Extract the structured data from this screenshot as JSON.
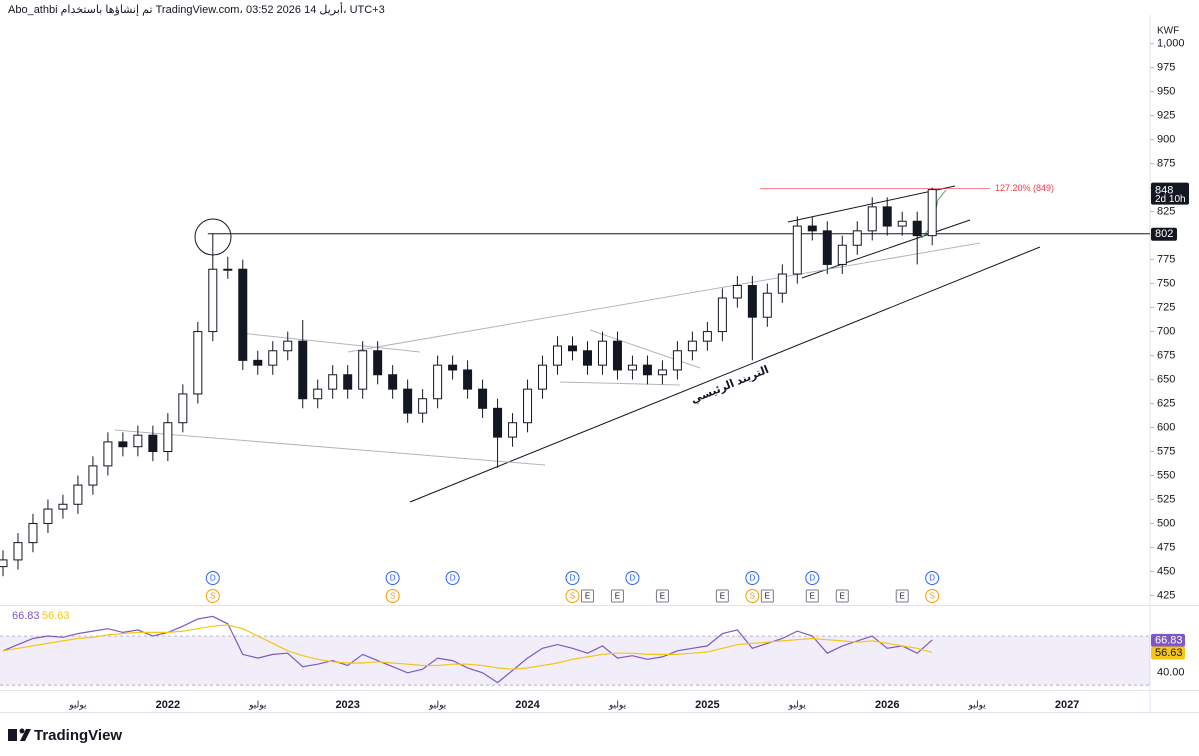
{
  "chart_data": {
    "type": "candlestick",
    "header": "Abo_athbi تم إنشاؤها باستخدام TradingView.com، 03:52 2026 أبريل 14، UTC+3",
    "brand": "TradingView",
    "currency": "KWF",
    "x": [
      "2021-02",
      "2021-03",
      "2021-04",
      "2021-05",
      "2021-06",
      "2021-07",
      "2021-08",
      "2021-09",
      "2021-10",
      "2021-11",
      "2021-12",
      "2022-01",
      "2022-02",
      "2022-03",
      "2022-04",
      "2022-05",
      "2022-06",
      "2022-07",
      "2022-08",
      "2022-09",
      "2022-10",
      "2022-11",
      "2022-12",
      "2023-01",
      "2023-02",
      "2023-03",
      "2023-04",
      "2023-05",
      "2023-06",
      "2023-07",
      "2023-08",
      "2023-09",
      "2023-10",
      "2023-11",
      "2023-12",
      "2024-01",
      "2024-02",
      "2024-03",
      "2024-04",
      "2024-05",
      "2024-06",
      "2024-07",
      "2024-08",
      "2024-09",
      "2024-10",
      "2024-11",
      "2024-12",
      "2025-01",
      "2025-02",
      "2025-03",
      "2025-04",
      "2025-05",
      "2025-06",
      "2025-07",
      "2025-08",
      "2025-09",
      "2025-10",
      "2025-11",
      "2025-12",
      "2026-01",
      "2026-02",
      "2026-03",
      "2026-04"
    ],
    "open": [
      455,
      462,
      480,
      500,
      515,
      520,
      540,
      560,
      585,
      580,
      592,
      575,
      605,
      635,
      700,
      765,
      765,
      670,
      665,
      680,
      690,
      630,
      640,
      655,
      640,
      680,
      655,
      640,
      615,
      630,
      665,
      660,
      640,
      620,
      590,
      605,
      640,
      665,
      685,
      680,
      665,
      690,
      660,
      665,
      655,
      660,
      680,
      690,
      700,
      735,
      748,
      715,
      740,
      760,
      810,
      805,
      770,
      790,
      805,
      830,
      810,
      815,
      800
    ],
    "high": [
      472,
      490,
      510,
      525,
      530,
      550,
      570,
      595,
      595,
      602,
      602,
      615,
      645,
      710,
      802,
      778,
      775,
      680,
      690,
      700,
      712,
      650,
      665,
      665,
      690,
      690,
      665,
      650,
      640,
      675,
      675,
      670,
      650,
      630,
      615,
      650,
      675,
      695,
      695,
      690,
      700,
      700,
      675,
      675,
      670,
      690,
      700,
      710,
      745,
      758,
      758,
      750,
      770,
      820,
      820,
      815,
      800,
      815,
      840,
      840,
      825,
      825,
      850
    ],
    "low": [
      445,
      452,
      470,
      490,
      505,
      510,
      530,
      550,
      570,
      570,
      565,
      565,
      595,
      625,
      690,
      755,
      660,
      655,
      655,
      670,
      620,
      620,
      630,
      630,
      630,
      645,
      630,
      605,
      605,
      620,
      650,
      630,
      610,
      558,
      580,
      595,
      630,
      655,
      670,
      655,
      655,
      650,
      650,
      645,
      645,
      650,
      670,
      680,
      690,
      725,
      670,
      705,
      730,
      750,
      795,
      760,
      760,
      780,
      795,
      800,
      800,
      770,
      790
    ],
    "close": [
      462,
      480,
      500,
      515,
      520,
      540,
      560,
      585,
      580,
      592,
      575,
      605,
      635,
      700,
      765,
      765,
      670,
      665,
      680,
      690,
      630,
      640,
      655,
      640,
      680,
      655,
      640,
      615,
      630,
      665,
      660,
      640,
      620,
      590,
      605,
      640,
      665,
      685,
      680,
      665,
      690,
      660,
      665,
      655,
      660,
      680,
      690,
      700,
      735,
      748,
      715,
      740,
      760,
      810,
      805,
      770,
      790,
      805,
      830,
      810,
      815,
      800,
      848
    ],
    "up_color": "#ffffff",
    "down_color": "#131722",
    "xlim": [
      "2021-01",
      "2027-07"
    ],
    "xticks": [
      {
        "value": "2021-07",
        "label": "يوليو"
      },
      {
        "value": "2022-01",
        "label": "2022"
      },
      {
        "value": "2022-07",
        "label": "يوليو"
      },
      {
        "value": "2023-01",
        "label": "2023"
      },
      {
        "value": "2023-07",
        "label": "يوليو"
      },
      {
        "value": "2024-01",
        "label": "2024"
      },
      {
        "value": "2024-07",
        "label": "يوليو"
      },
      {
        "value": "2025-01",
        "label": "2025"
      },
      {
        "value": "2025-07",
        "label": "يوليو"
      },
      {
        "value": "2026-01",
        "label": "2026"
      },
      {
        "value": "2026-07",
        "label": "يوليو"
      },
      {
        "value": "2027-01",
        "label": "2027"
      }
    ],
    "ylim": [
      415,
      1030
    ],
    "yticks": [
      425,
      450,
      475,
      500,
      525,
      550,
      575,
      600,
      625,
      650,
      675,
      700,
      725,
      750,
      775,
      800,
      825,
      850,
      875,
      900,
      925,
      950,
      975,
      {
        "value": 1000,
        "label": "1,000"
      }
    ],
    "grid": false,
    "last_price": 848,
    "countdown": "2d 10h",
    "level": 802,
    "target": {
      "value": 849,
      "label": "127.20% (849)"
    },
    "target_color": "#f23645",
    "annotation": "التريند الرئيسي",
    "events": [
      {
        "label": "D",
        "x": "2022-04"
      },
      {
        "label": "D",
        "x": "2023-04"
      },
      {
        "label": "D",
        "x": "2023-08"
      },
      {
        "label": "D",
        "x": "2024-04"
      },
      {
        "label": "D",
        "x": "2024-08"
      },
      {
        "label": "D",
        "x": "2025-04"
      },
      {
        "label": "D",
        "x": "2025-08"
      },
      {
        "label": "D",
        "x": "2026-04"
      },
      {
        "label": "S",
        "x": "2022-04"
      },
      {
        "label": "S",
        "x": "2023-04"
      },
      {
        "label": "S",
        "x": "2024-04"
      },
      {
        "label": "S",
        "x": "2025-04"
      },
      {
        "label": "S",
        "x": "2026-04"
      },
      {
        "label": "E",
        "x": "2024-05"
      },
      {
        "label": "E",
        "x": "2024-07"
      },
      {
        "label": "E",
        "x": "2024-10"
      },
      {
        "label": "E",
        "x": "2025-02"
      },
      {
        "label": "E",
        "x": "2025-05"
      },
      {
        "label": "E",
        "x": "2025-08"
      },
      {
        "label": "E",
        "x": "2025-10"
      },
      {
        "label": "E",
        "x": "2026-02"
      }
    ],
    "rsi": {
      "ylim": [
        26,
        94.5
      ],
      "yticks": [
        {
          "value": 40,
          "label": "40.00"
        }
      ],
      "bands": [
        30,
        70
      ],
      "band_color": "#7e57c2",
      "series": [
        {
          "color": "#7e57c2",
          "values": [
            58,
            63,
            68,
            70,
            69,
            72,
            74,
            76,
            73,
            75,
            70,
            73,
            78,
            84,
            86,
            80,
            55,
            52,
            55,
            56,
            45,
            47,
            50,
            46,
            55,
            50,
            45,
            40,
            43,
            52,
            50,
            44,
            40,
            32,
            42,
            52,
            60,
            63,
            60,
            56,
            62,
            52,
            54,
            51,
            53,
            58,
            60,
            62,
            72,
            75,
            60,
            64,
            68,
            74,
            70,
            56,
            62,
            66,
            70,
            60,
            62,
            56,
            66.83
          ]
        },
        {
          "color": "#f5c518",
          "values": [
            58,
            60,
            62,
            64,
            66,
            68,
            69,
            71,
            72,
            73,
            73,
            73,
            74,
            76,
            78,
            79,
            76,
            70,
            64,
            58,
            54,
            51,
            49,
            48,
            48,
            49,
            48,
            47,
            46,
            46,
            47,
            47,
            46,
            44,
            43,
            44,
            46,
            48,
            51,
            53,
            55,
            56,
            56,
            55,
            55,
            55,
            56,
            57,
            60,
            63,
            64,
            65,
            66,
            67,
            68,
            67,
            66,
            65,
            66,
            64,
            62,
            60,
            56.63
          ]
        }
      ]
    }
  }
}
